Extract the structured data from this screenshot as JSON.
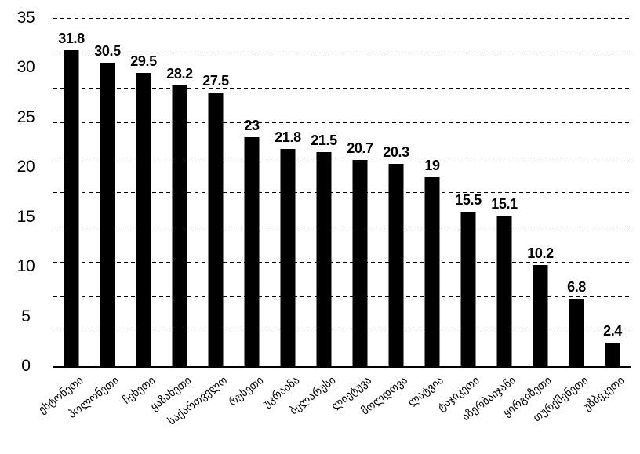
{
  "chart_data": {
    "type": "bar",
    "title": "",
    "xlabel": "",
    "ylabel": "",
    "categories": [
      "ესტონეთი",
      "პოლონეთი",
      "ჩეხეთი",
      "ყაზახეთი",
      "საქართველო",
      "რუსეთი",
      "უკრაინა",
      "ბელარუსი",
      "ლიეტუვა",
      "მოლდოვა",
      "ლატვია",
      "ტაჯიკეთი",
      "აზერბაიჯანი",
      "ყირგიზეთი",
      "თურქმენეთი",
      "უზბეკეთი"
    ],
    "values": [
      31.8,
      30.5,
      29.5,
      28.2,
      27.5,
      23,
      21.8,
      21.5,
      20.7,
      20.3,
      19,
      15.5,
      15.1,
      10.2,
      6.8,
      2.4
    ],
    "value_labels": [
      "31.8",
      "30.5",
      "29.5",
      "28.2",
      "27.5",
      "23",
      "21.8",
      "21.5",
      "20.7",
      "20.3",
      "19",
      "15.5",
      "15.1",
      "10.2",
      "6.8",
      "2.4"
    ],
    "ylim": [
      0,
      35
    ],
    "yticks": [
      0,
      5,
      10,
      15,
      20,
      25,
      30,
      35
    ],
    "gridline_step": 3.5,
    "grid": "horizontal-dashed",
    "legend": "none",
    "data_label_position": "above-bars",
    "xtick_rotation_deg": -38,
    "bar_color": "#000000",
    "text_color": "#000000",
    "background": "#ffffff"
  }
}
